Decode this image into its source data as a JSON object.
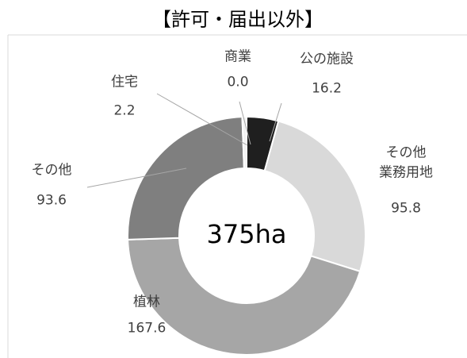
{
  "chart_data": {
    "type": "donut",
    "title": "【許可・届出以外】",
    "center_label": "375ha",
    "categories": [
      "公の施設",
      "その他\n業務用地",
      "植林",
      "その他",
      "住宅",
      "商業"
    ],
    "values": [
      16.2,
      95.8,
      167.6,
      93.6,
      2.2,
      0.0
    ],
    "value_labels": [
      "16.2",
      "95.8",
      "167.6",
      "93.6",
      "2.2",
      "0.0"
    ],
    "colors": [
      "#1f1f1f",
      "#d9d9d9",
      "#a6a6a6",
      "#7f7f7f",
      "#f2f2f2",
      "#595959"
    ]
  }
}
